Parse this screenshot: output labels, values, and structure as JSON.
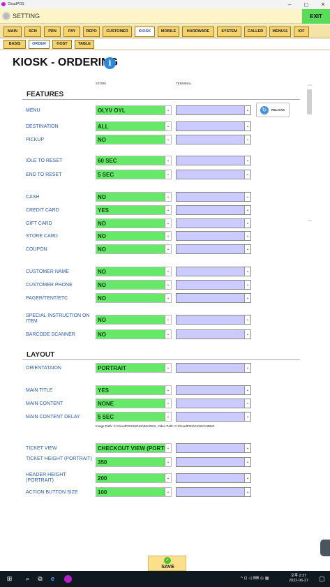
{
  "window": {
    "app_name": "CloudPOS",
    "min": "–",
    "max": "◻",
    "close": "✕"
  },
  "header": {
    "title": "SETTING",
    "exit_label": "EXIT"
  },
  "tabs": [
    "MAIN",
    "SCN",
    "PRN",
    "PAY",
    "REPO",
    "CUSTOMER",
    "KIOSK",
    "MOBILE",
    "HARDWARE",
    "SYSTEM",
    "CALLER",
    "MENU11",
    "IOF"
  ],
  "active_tab": "KIOSK",
  "subtabs": [
    "BASIS",
    "ORDER",
    "HOST",
    "TABLE"
  ],
  "active_subtab": "ORDER",
  "page": {
    "title": "KIOSK - ORDERING",
    "col_store": "STORE",
    "col_terminal": "TERMINAL",
    "reload_label": "RELOAD",
    "path_note": "Image Path: C:\\CloudPOS\\KIOSK\\IMAGES, Video Path: C:\\CloudPOS\\KIOSK\\VIDEO"
  },
  "sections": {
    "features": "FEATURES",
    "layout": "LAYOUT"
  },
  "rows": [
    {
      "label": "MENU",
      "store": "OLYV OYL",
      "terminal": ""
    },
    {
      "label": "DESTINATION",
      "store": "ALL",
      "terminal": ""
    },
    {
      "label": "PICKUP",
      "store": "NO",
      "terminal": ""
    },
    {
      "label": "IDLE TO RESET",
      "store": "60 SEC",
      "terminal": ""
    },
    {
      "label": "END TO RESET",
      "store": "5 SEC",
      "terminal": ""
    },
    {
      "label": "CASH",
      "store": "NO",
      "terminal": ""
    },
    {
      "label": "CREDIT CARD",
      "store": "YES",
      "terminal": ""
    },
    {
      "label": "GIFT CARD",
      "store": "NO",
      "terminal": ""
    },
    {
      "label": "STORE CARD",
      "store": "NO",
      "terminal": ""
    },
    {
      "label": "COUPON",
      "store": "NO",
      "terminal": ""
    },
    {
      "label": "CUSTOMER NAME",
      "store": "NO",
      "terminal": ""
    },
    {
      "label": "CUSTOMER PHONE",
      "store": "NO",
      "terminal": ""
    },
    {
      "label": "PAGER/TENT/ETC",
      "store": "NO",
      "terminal": ""
    },
    {
      "label": "SPECIAL INSTRUCTION ON ITEM",
      "store": "NO",
      "terminal": ""
    },
    {
      "label": "BARCODE SCANNER",
      "store": "NO",
      "terminal": ""
    },
    {
      "label": "ORIENTATAION",
      "store": "PORTRAIT",
      "terminal": ""
    },
    {
      "label": "MAIN TITLE",
      "store": "YES",
      "terminal": ""
    },
    {
      "label": "MAIN CONTENT",
      "store": "NONE",
      "terminal": ""
    },
    {
      "label": "MAIN CONTENT DELAY",
      "store": "5 SEC",
      "terminal": ""
    },
    {
      "label": "TICKET VIEW",
      "store": "CHECKOUT VIEW (PORTRAIT)",
      "terminal": ""
    },
    {
      "label": "TICKET HEIGHT (PORTRAIT)",
      "store": "350",
      "terminal": ""
    },
    {
      "label": "HEADER HEIGHT (PORTRAIT)",
      "store": "200",
      "terminal": ""
    },
    {
      "label": "ACTION BUTTON SIZE",
      "store": "100",
      "terminal": ""
    }
  ],
  "save_label": "SAVE",
  "taskbar": {
    "time": "오후 2:37",
    "date": "2022-06-27"
  },
  "colors": {
    "store_field": "#66e868",
    "terminal_field": "#cbcbff",
    "label": "#2a5bb0",
    "tab": "#f6d36d",
    "exit": "#5bdc58"
  },
  "icons": [
    "gear-icon",
    "info-icon",
    "reload-icon",
    "check-icon",
    "windows-start-icon",
    "search-icon",
    "edge-icon"
  ]
}
